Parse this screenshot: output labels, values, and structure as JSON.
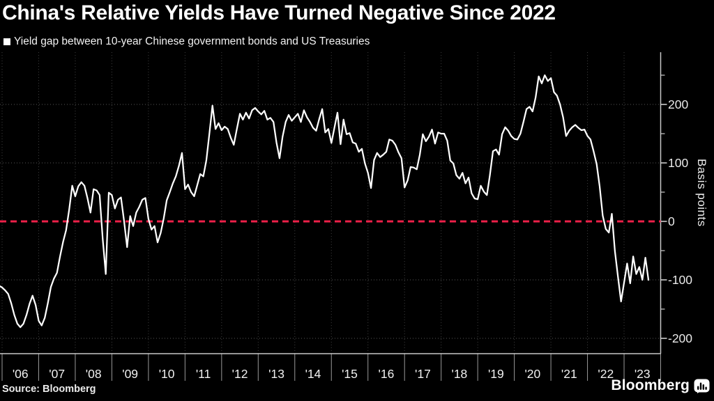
{
  "header": {
    "title": "China's Relative Yields Have Turned Negative Since 2022",
    "legend": "Yield gap between 10-year Chinese government bonds and US Treasuries"
  },
  "footer": {
    "source": "Source: Bloomberg",
    "brand": "Bloomberg"
  },
  "colors": {
    "background": "#000000",
    "line": "#ffffff",
    "zero_line": "#ed2048",
    "grid_h": "#585858",
    "grid_v": "#3f3f3f",
    "axis": "#c8c8c8",
    "tick": "#cccccc",
    "x_tick": "#9a9a9a",
    "tick_label": "#eaeaea",
    "title_text": "#ffffff"
  },
  "chart_data": {
    "type": "line",
    "title": "China's Relative Yields Have Turned Negative Since 2022",
    "xlabel": "",
    "ylabel": "Basis points",
    "legend_position": "top-left",
    "grid": "dotted, major 100bp horizontal lines and yearly vertical lines",
    "y_axis": {
      "unit": "Basis points",
      "side": "right",
      "range_bp": [
        -229,
        289
      ],
      "major_ticks": [
        200,
        100,
        0,
        -100,
        -200
      ],
      "major_tick_labels": [
        "200",
        "100",
        "0",
        "-100",
        "-200"
      ],
      "minor_ticks": [
        250,
        150,
        50,
        -50,
        -150
      ]
    },
    "x_axis": {
      "first_tick_year": 2006,
      "last_tick_year": 2024,
      "year_labels": [
        "'06",
        "'07",
        "'08",
        "'09",
        "'10",
        "'11",
        "'12",
        "'13",
        "'14",
        "'15",
        "'16",
        "'17",
        "'18",
        "'19",
        "'20",
        "'21",
        "'22",
        "'23"
      ]
    },
    "zero_line": {
      "value": 0,
      "color": "#ed2048",
      "style": "dashed"
    },
    "series": [
      {
        "name": "Yield gap between 10-year Chinese government bonds and US Treasuries",
        "color": "#ffffff",
        "frequency": "monthly",
        "x_start_year": 2005.9167,
        "values_bp": [
          -110,
          -113,
          -118,
          -124,
          -140,
          -160,
          -175,
          -181,
          -175,
          -160,
          -141,
          -127,
          -143,
          -170,
          -178,
          -165,
          -140,
          -112,
          -98,
          -88,
          -60,
          -35,
          -15,
          20,
          61,
          43,
          60,
          67,
          61,
          40,
          15,
          55,
          53,
          45,
          -30,
          -90,
          49,
          45,
          22,
          37,
          41,
          1,
          -44,
          9,
          -8,
          15,
          25,
          37,
          40,
          4,
          -14,
          -8,
          -36,
          -20,
          5,
          36,
          50,
          65,
          77,
          95,
          117,
          55,
          63,
          50,
          43,
          62,
          81,
          77,
          105,
          150,
          198,
          158,
          168,
          156,
          162,
          158,
          143,
          131,
          158,
          184,
          174,
          186,
          176,
          190,
          194,
          188,
          183,
          189,
          174,
          177,
          170,
          135,
          108,
          145,
          170,
          182,
          172,
          178,
          184,
          170,
          190,
          178,
          170,
          160,
          155,
          175,
          192,
          152,
          158,
          134,
          160,
          186,
          132,
          174,
          149,
          151,
          135,
          133,
          119,
          124,
          99,
          83,
          57,
          105,
          117,
          110,
          114,
          119,
          140,
          138,
          131,
          118,
          108,
          58,
          70,
          93,
          92,
          89,
          114,
          149,
          137,
          145,
          157,
          133,
          152,
          150,
          150,
          138,
          104,
          99,
          79,
          73,
          83,
          65,
          75,
          48,
          39,
          38,
          61,
          51,
          45,
          79,
          120,
          123,
          114,
          149,
          161,
          155,
          146,
          141,
          140,
          150,
          170,
          192,
          196,
          188,
          212,
          248,
          236,
          250,
          240,
          245,
          221,
          215,
          200,
          178,
          146,
          155,
          161,
          165,
          160,
          156,
          157,
          146,
          140,
          120,
          98,
          60,
          10,
          -13,
          -19,
          13,
          -51,
          -95,
          -137,
          -105,
          -72,
          -106,
          -60,
          -90,
          -78,
          -100,
          -62,
          -100
        ]
      }
    ]
  }
}
